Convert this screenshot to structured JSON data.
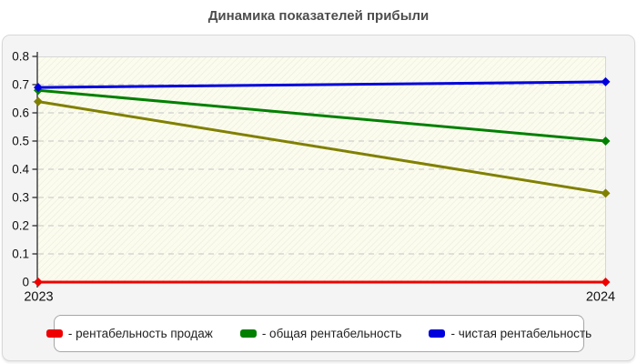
{
  "chart_data": {
    "type": "line",
    "title": "Динамика показателей прибыли",
    "x_categories": [
      "2023",
      "2024"
    ],
    "y_tick_values": [
      0,
      0.1,
      0.2,
      0.3,
      0.4,
      0.5,
      0.6,
      0.7,
      0.8
    ],
    "y_tick_labels": [
      "0",
      "0.1",
      "0.2",
      "0.3",
      "0.4",
      "0.5",
      "0.6",
      "0.7",
      "0.8"
    ],
    "ylim": [
      0,
      0.8
    ],
    "grid": "horizontal-dashed",
    "legend_position": "bottom",
    "plot_background": "#fcfcee",
    "series": [
      {
        "name": "рентабельность продаж",
        "color": "#ee0000",
        "values": [
          0,
          0
        ],
        "in_legend": true
      },
      {
        "name": "общая рентабельность",
        "color": "#008000",
        "values": [
          0.68,
          0.5
        ],
        "in_legend": true
      },
      {
        "name": "чистая рентабельность",
        "color": "#0000dd",
        "values": [
          0.69,
          0.71
        ],
        "in_legend": true
      },
      {
        "name": "",
        "color": "#808000",
        "values": [
          0.64,
          0.315
        ],
        "in_legend": false
      }
    ],
    "draw_order": [
      0,
      3,
      1,
      2
    ]
  },
  "legend": {
    "items": [
      {
        "label": "- рентабельность продаж",
        "color": "#ee0000"
      },
      {
        "label": "- общая рентабельность",
        "color": "#008000"
      },
      {
        "label": "- чистая рентабельность",
        "color": "#0000dd"
      }
    ]
  },
  "colors": {
    "title_text": "#4d4d4d",
    "panel_background": "#f4f4f4",
    "axis": "#2b2b2b",
    "gridline": "#cfcfcf"
  }
}
